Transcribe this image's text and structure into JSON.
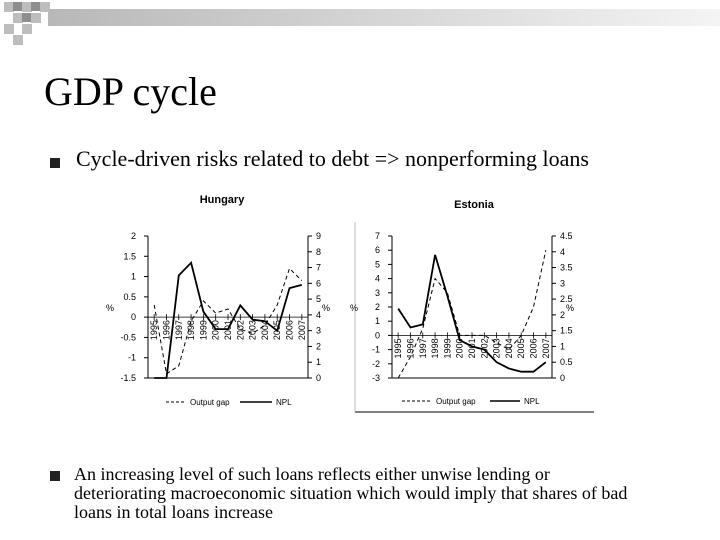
{
  "slide": {
    "title": "GDP cycle",
    "bullet1": "Cycle-driven risks related to debt => nonperforming loans",
    "bullet2": "An increasing level of such loans reflects either unwise lending or deteriorating macroeconomic situation which would imply that shares of bad loans in total loans increase"
  },
  "chart_data": [
    {
      "type": "line",
      "title": "Hungary",
      "x": [
        "1995",
        "1996",
        "1997",
        "1998",
        "1999",
        "2000",
        "2001",
        "2002",
        "2003",
        "2004",
        "2005",
        "2006",
        "2007"
      ],
      "ylabel_left": "%",
      "ylabel_right": "%",
      "ylim_left": [
        -1.5,
        2
      ],
      "ylim_right": [
        0,
        9
      ],
      "yticks_left": [
        "2",
        "1.5",
        "1",
        "0.5",
        "0",
        "-0.5",
        "-1",
        "-1.5"
      ],
      "yticks_right": [
        "9",
        "8",
        "7",
        "6",
        "5",
        "4",
        "3",
        "2",
        "1",
        "0"
      ],
      "series": [
        {
          "name": "Output gap",
          "axis": "left",
          "style": "dashed",
          "values": [
            0.3,
            -1.4,
            -1.2,
            -0.1,
            0.4,
            0.1,
            0.2,
            -0.3,
            -0.4,
            -0.2,
            0.3,
            1.2,
            0.9
          ]
        },
        {
          "name": "NPL",
          "axis": "right",
          "style": "solid",
          "values": [
            0,
            0,
            6.5,
            7.3,
            4.2,
            3.1,
            3.1,
            4.6,
            3.7,
            3.6,
            3.0,
            5.7,
            5.9
          ]
        }
      ]
    },
    {
      "type": "line",
      "title": "Estonia",
      "x": [
        "1995",
        "1996",
        "1997",
        "1998",
        "1999",
        "2000",
        "2001",
        "2002",
        "2003",
        "2004",
        "2005",
        "2006",
        "2007"
      ],
      "ylabel_left": "%",
      "ylabel_right": "%",
      "ylim_left": [
        -3,
        7
      ],
      "ylim_right": [
        0,
        4.5
      ],
      "yticks_left": [
        "7",
        "6",
        "5",
        "4",
        "3",
        "2",
        "1",
        "0",
        "-1",
        "-2",
        "-3"
      ],
      "yticks_right": [
        "4.5",
        "4",
        "3.5",
        "3",
        "2.5",
        "2",
        "1.5",
        "1",
        "0.5",
        "0"
      ],
      "series": [
        {
          "name": "Output gap",
          "axis": "left",
          "style": "dashed",
          "values": [
            -3,
            -1.5,
            0.5,
            4,
            3,
            0,
            0,
            0,
            -0.5,
            -1,
            0,
            2,
            6
          ]
        },
        {
          "name": "NPL",
          "axis": "right",
          "style": "solid",
          "values": [
            2.2,
            1.6,
            1.7,
            3.9,
            2.6,
            1.2,
            1.0,
            0.9,
            0.5,
            0.3,
            0.2,
            0.2,
            0.5
          ]
        }
      ]
    }
  ]
}
